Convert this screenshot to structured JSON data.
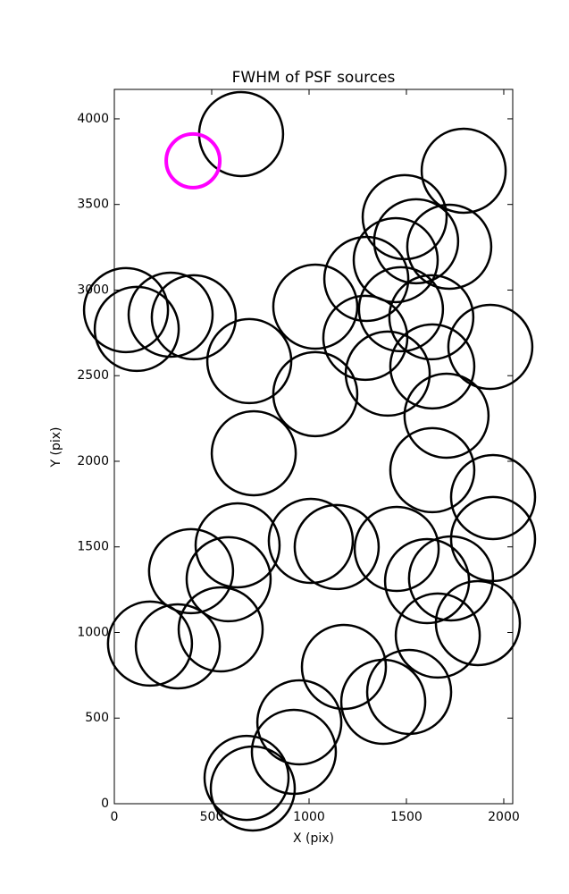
{
  "chart_data": {
    "type": "scatter",
    "title": "FWHM of PSF sources",
    "x_label": "X (pix)",
    "y_label": "Y (pix)",
    "xlim": [
      0,
      2046
    ],
    "ylim": [
      0,
      4172
    ],
    "xticks": [
      0,
      500,
      1000,
      1500,
      2000
    ],
    "yticks": [
      0,
      500,
      1000,
      1500,
      2000,
      2500,
      3000,
      3500,
      4000
    ],
    "grid": false,
    "series": [
      {
        "color": "#000000",
        "x": [
          651,
          1794,
          1491,
          1550,
          1720,
          1445,
          1294,
          60,
          115,
          289,
          408,
          1032,
          1472,
          1628,
          1289,
          1931,
          693,
          1404,
          1633,
          1032,
          1706,
          716,
          1633,
          1945,
          1945,
          633,
          1009,
          1142,
          1450,
          394,
          587,
          1606,
          1729,
          183,
          326,
          546,
          1867,
          1661,
          1179,
          1514,
          1381,
          950,
          922,
          679,
          711
        ],
        "values": [
          3911,
          3697,
          3426,
          3285,
          3253,
          3175,
          3065,
          2883,
          2773,
          2856,
          2841,
          2903,
          2888,
          2841,
          2721,
          2668,
          2585,
          2512,
          2554,
          2392,
          2266,
          2047,
          1948,
          1791,
          1546,
          1509,
          1535,
          1499,
          1488,
          1358,
          1311,
          1300,
          1316,
          935,
          919,
          1018,
          1055,
          982,
          799,
          653,
          595,
          475,
          303,
          151,
          89
        ]
      },
      {
        "color": "#ff00ff",
        "x": [
          404
        ],
        "values": [
          3755
        ]
      }
    ]
  }
}
